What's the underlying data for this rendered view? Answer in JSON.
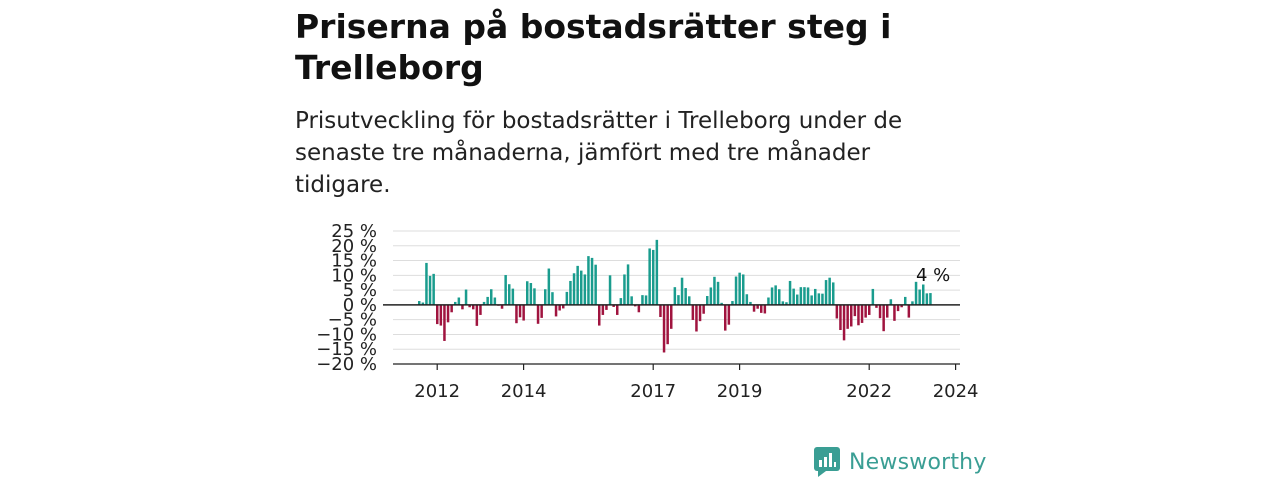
{
  "title": "Priserna på bostadsrätter steg i Trelleborg",
  "subtitle": "Prisutveckling för bostadsrätter i Trelleborg under de senaste tre månaderna, jämfört med tre månader tidigare.",
  "brand": "Newsworthy",
  "colors": {
    "positive": "#1a9c8e",
    "negative": "#a0143f",
    "grid": "#dddddd",
    "axis": "#222222",
    "brand": "#3a9e94"
  },
  "chart_data": {
    "type": "bar",
    "ylim": [
      -20,
      25
    ],
    "yticks": [
      25,
      20,
      15,
      10,
      5,
      0,
      -5,
      -10,
      -15,
      -20
    ],
    "ytick_labels": [
      "25 %",
      "20 %",
      "15 %",
      "10 %",
      "5 %",
      "0 %",
      "−5 %",
      "−10 %",
      "−15 %",
      "−20 %"
    ],
    "x_start": "2011-08",
    "xtick_labels": [
      "2012",
      "2014",
      "2017",
      "2019",
      "2022",
      "2024"
    ],
    "xtick_positions": [
      "2012-01",
      "2014-01",
      "2017-01",
      "2019-01",
      "2022-01",
      "2024-01"
    ],
    "annotation": "4 %",
    "values": [
      1.3,
      0.8,
      14.2,
      9.8,
      10.5,
      -6.5,
      -7.0,
      -12.2,
      -5.9,
      -2.5,
      1.0,
      2.5,
      -1.5,
      5.2,
      -0.8,
      -1.5,
      -7.1,
      -3.4,
      1.0,
      2.7,
      5.3,
      2.5,
      -0.3,
      -1.3,
      10.1,
      7.0,
      5.5,
      -6.2,
      -4.2,
      -5.3,
      8.0,
      7.4,
      5.6,
      -6.4,
      -4.4,
      5.3,
      12.3,
      4.3,
      -3.9,
      -1.9,
      -1.2,
      4.4,
      8.1,
      10.7,
      13.2,
      11.6,
      10.3,
      16.5,
      15.9,
      13.6,
      -7.0,
      -3.4,
      -1.7,
      10.0,
      -0.7,
      -3.4,
      2.3,
      10.3,
      13.7,
      2.9,
      -0.5,
      -2.5,
      3.3,
      3.2,
      19.1,
      18.6,
      22.0,
      -4.1,
      -16.1,
      -13.3,
      -8.1,
      6.0,
      3.3,
      9.2,
      5.7,
      2.9,
      -5.1,
      -9.0,
      -5.5,
      -3.0,
      3.0,
      5.9,
      9.5,
      7.8,
      0.7,
      -8.7,
      -6.7,
      1.3,
      9.6,
      10.9,
      10.3,
      3.6,
      1.0,
      -2.3,
      -1.3,
      -2.7,
      -2.9,
      2.5,
      5.9,
      6.6,
      5.3,
      1.2,
      0.9,
      8.1,
      5.5,
      3.5,
      6.0,
      6.0,
      5.9,
      3.2,
      5.4,
      3.9,
      3.8,
      8.4,
      9.2,
      7.6,
      -4.6,
      -8.5,
      -12.0,
      -8.1,
      -7.3,
      -3.8,
      -6.9,
      -6.1,
      -4.3,
      -3.4,
      5.4,
      -1.0,
      -4.5,
      -8.9,
      -4.3,
      1.9,
      -5.4,
      -2.1,
      -0.8,
      2.7,
      -4.3,
      1.2,
      7.8,
      5.2,
      6.9,
      3.9,
      4.0
    ]
  }
}
